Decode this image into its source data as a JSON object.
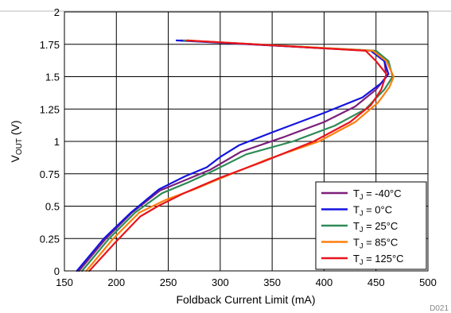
{
  "chart_data": {
    "type": "line",
    "xlabel": "Foldback Current Limit (mA)",
    "ylabel_main": "V",
    "ylabel_sub": "OUT",
    "ylabel_unit": " (V)",
    "xlim": [
      150,
      500
    ],
    "ylim": [
      0,
      2
    ],
    "xticks": [
      150,
      200,
      250,
      300,
      350,
      400,
      450,
      500
    ],
    "yticks": [
      0,
      0.25,
      0.5,
      0.75,
      1,
      1.25,
      1.5,
      1.75,
      2
    ],
    "ytick_labels": [
      "0",
      "0.25",
      "0.5",
      "0.75",
      "1",
      "1.25",
      "1.5",
      "1.75",
      "2"
    ],
    "grid": true,
    "legend_position": "bottom-right",
    "footnote": "D021",
    "series": [
      {
        "name_prefix": "T",
        "name_sub": "J",
        "name_suffix": " = -40°C",
        "color": "#7b1f7b",
        "x": [
          164,
          190,
          215,
          242,
          266,
          290,
          320,
          360,
          400,
          430,
          450,
          460,
          458,
          445,
          262
        ],
        "y": [
          0,
          0.25,
          0.45,
          0.62,
          0.7,
          0.78,
          0.92,
          1.03,
          1.15,
          1.27,
          1.4,
          1.5,
          1.62,
          1.7,
          1.78
        ]
      },
      {
        "name_prefix": "T",
        "name_sub": "J",
        "name_suffix": " = 0°C",
        "color": "#1414e0",
        "x": [
          162,
          188,
          214,
          241,
          266,
          287,
          300,
          318,
          350,
          400,
          437,
          455,
          462,
          458,
          445,
          258
        ],
        "y": [
          0,
          0.25,
          0.45,
          0.63,
          0.73,
          0.8,
          0.88,
          0.97,
          1.07,
          1.22,
          1.34,
          1.45,
          1.52,
          1.62,
          1.7,
          1.78
        ]
      },
      {
        "name_prefix": "T",
        "name_sub": "J",
        "name_suffix": " = 25°C",
        "color": "#2e8b57",
        "x": [
          167,
          193,
          218,
          244,
          268,
          290,
          325,
          370,
          410,
          440,
          458,
          466,
          462,
          450,
          265
        ],
        "y": [
          0,
          0.25,
          0.45,
          0.6,
          0.68,
          0.76,
          0.9,
          1.0,
          1.12,
          1.25,
          1.4,
          1.5,
          1.62,
          1.7,
          1.78
        ]
      },
      {
        "name_prefix": "T",
        "name_sub": "J",
        "name_suffix": " = 85°C",
        "color": "#ff7f0e",
        "x": [
          171,
          197,
          222,
          248,
          275,
          305,
          345,
          395,
          430,
          452,
          463,
          467,
          460,
          447,
          268
        ],
        "y": [
          0,
          0.25,
          0.45,
          0.55,
          0.63,
          0.73,
          0.86,
          1.0,
          1.15,
          1.3,
          1.42,
          1.5,
          1.62,
          1.7,
          1.78
        ]
      },
      {
        "name_prefix": "T",
        "name_sub": "J",
        "name_suffix": " = 125°C",
        "color": "#e8141e",
        "x": [
          174,
          199,
          223,
          240,
          265,
          300,
          340,
          390,
          425,
          445,
          455,
          460,
          450,
          440,
          268
        ],
        "y": [
          0,
          0.22,
          0.42,
          0.5,
          0.6,
          0.72,
          0.84,
          1.0,
          1.15,
          1.28,
          1.4,
          1.52,
          1.62,
          1.7,
          1.78
        ]
      }
    ]
  }
}
